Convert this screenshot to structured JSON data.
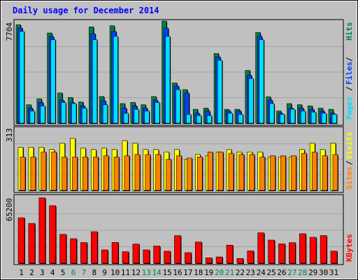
{
  "chart_data": [
    {
      "type": "bar",
      "title": "Daily usage for December 2014",
      "categories": [
        "1",
        "2",
        "3",
        "4",
        "5",
        "6",
        "7",
        "8",
        "9",
        "10",
        "11",
        "12",
        "13",
        "14",
        "15",
        "16",
        "17",
        "18",
        "19",
        "20",
        "21",
        "22",
        "23",
        "24",
        "25",
        "26",
        "27",
        "28",
        "29",
        "30",
        "31"
      ],
      "weekend_days": [
        "6",
        "7",
        "13",
        "14",
        "20",
        "21",
        "27",
        "28"
      ],
      "ymax_label": "7704",
      "ylim": [
        0,
        7704
      ],
      "side_labels": [
        "Pages",
        "Files",
        "Hits"
      ],
      "series": [
        {
          "name": "Hits",
          "color": "#008040",
          "values": [
            7425,
            1394,
            1842,
            6803,
            2281,
            1941,
            1602,
            7260,
            2013,
            7346,
            1479,
            1564,
            1394,
            2013,
            7704,
            3034,
            2534,
            1050,
            1136,
            5252,
            1050,
            1050,
            3980,
            6837,
            1993,
            922,
            1479,
            1394,
            1307,
            1136,
            1050
          ]
        },
        {
          "name": "Files",
          "color": "#0040ff",
          "values": [
            7175,
            1136,
            1564,
            6547,
            1736,
            1564,
            1307,
            6751,
            1691,
            6921,
            1136,
            1307,
            1136,
            1736,
            7175,
            2802,
            2281,
            751,
            922,
            4999,
            922,
            922,
            3614,
            6547,
            1736,
            751,
            1136,
            1136,
            1050,
            922,
            751
          ]
        },
        {
          "name": "Pages",
          "color": "#00e0ff",
          "values": [
            6921,
            922,
            1307,
            6292,
            1564,
            1479,
            1136,
            6292,
            1394,
            6547,
            751,
            1050,
            922,
            1564,
            6547,
            2534,
            667,
            581,
            581,
            4744,
            751,
            667,
            3373,
            6292,
            1479,
            667,
            1050,
            922,
            839,
            751,
            667
          ]
        }
      ]
    },
    {
      "type": "bar",
      "ymax_label": "313",
      "ylim": [
        0,
        313
      ],
      "side_labels": [
        "Sites",
        "Visits"
      ],
      "series": [
        {
          "name": "Visits",
          "color": "#ffff00",
          "values": [
            217,
            217,
            217,
            205,
            237,
            262,
            212,
            205,
            212,
            205,
            250,
            237,
            205,
            205,
            193,
            205,
            156,
            180,
            174,
            193,
            205,
            193,
            193,
            193,
            168,
            168,
            168,
            205,
            237,
            205,
            237
          ]
        },
        {
          "name": "Sites",
          "color": "#ff8000",
          "values": [
            168,
            168,
            193,
            193,
            168,
            168,
            168,
            168,
            174,
            168,
            174,
            180,
            180,
            180,
            156,
            174,
            162,
            168,
            193,
            193,
            186,
            180,
            180,
            168,
            174,
            174,
            174,
            186,
            193,
            174,
            180
          ]
        }
      ]
    },
    {
      "type": "bar",
      "ymax_label": "65200",
      "ylim": [
        0,
        65200
      ],
      "side_labels": [
        "KBytes"
      ],
      "series": [
        {
          "name": "KBytes",
          "color": "#ff0000",
          "values": [
            45000,
            39400,
            64700,
            57000,
            28600,
            24300,
            20500,
            31200,
            13200,
            20600,
            11400,
            19000,
            13200,
            17000,
            11900,
            27300,
            10500,
            21000,
            5300,
            6200,
            17900,
            4700,
            12200,
            30100,
            22900,
            19200,
            20400,
            29200,
            25700,
            27400,
            12000
          ]
        }
      ]
    }
  ]
}
